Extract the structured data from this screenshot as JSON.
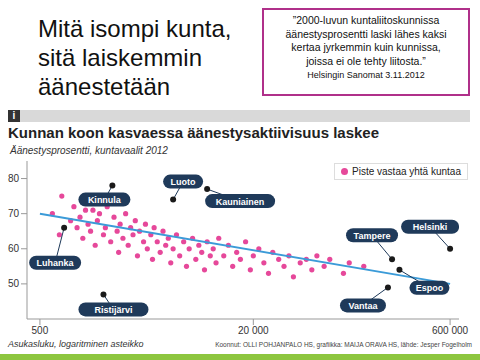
{
  "slide": {
    "title_lines": [
      "Mitä isompi kunta,",
      "sitä laiskemmin",
      "äänestetään"
    ],
    "quote": {
      "lines": [
        "”2000-luvun kuntaliitoskunnissa",
        "äänestysprosentti laski lähes kaksi",
        "kertaa jyrkemmin kuin kunnissa,",
        "joissa ei ole tehty liitosta.”"
      ],
      "source": "Helsingin Sanomat 3.11.2012"
    },
    "icon": "i",
    "credits": "Koonnut: OLLI POHJANPALO HS, grafiikka: MAIJA ORAVA HS, lähde: Jesper Fogelholm"
  },
  "chart_data": {
    "type": "scatter",
    "title": "Kunnan koon kasvaessa äänestysaktiivisuus laskee",
    "y_label": "Äänestysprosentti, kuntavaalit 2012",
    "x_label": "Asukasluku, logaritminen asteikko",
    "log": "x",
    "legend": "upper right",
    "xlim": [
      400,
      700000
    ],
    "xticks": [
      500,
      {
        "value": 20000,
        "label": "20 000"
      },
      {
        "value": 600000,
        "label": "600 000"
      }
    ],
    "ylim": [
      40,
      85
    ],
    "yticks": [
      50,
      60,
      70,
      80
    ],
    "series": [
      {
        "name": "Piste vastaa yhtä kuntaa",
        "type": "scatter",
        "color": "#e6489a",
        "x": [
          620,
          700,
          730,
          850,
          900,
          950,
          1000,
          1050,
          1100,
          1150,
          1200,
          1250,
          1300,
          1350,
          1400,
          1500,
          1550,
          1600,
          1700,
          1800,
          1900,
          1950,
          2000,
          2100,
          2200,
          2300,
          2400,
          2500,
          2600,
          2700,
          2800,
          3000,
          3100,
          3200,
          3400,
          3500,
          3600,
          3800,
          4000,
          4200,
          4400,
          4600,
          4800,
          5000,
          5300,
          5600,
          6000,
          6300,
          6600,
          7000,
          7400,
          7800,
          8200,
          8600,
          9000,
          9500,
          10000,
          10500,
          11000,
          12000,
          13000,
          14000,
          15000,
          16000,
          17500,
          19000,
          20000,
          22000,
          24000,
          26000,
          28000,
          31000,
          34000,
          37000,
          40000,
          45000,
          50000,
          55000,
          60000,
          68000,
          75000,
          95000,
          105000,
          135000
        ],
        "values": [
          70,
          64,
          75,
          68,
          72,
          66,
          69,
          63,
          71,
          67,
          65,
          71,
          61,
          68,
          70,
          64,
          66,
          72,
          62,
          69,
          65,
          59,
          67,
          63,
          70,
          61,
          66,
          64,
          68,
          58,
          65,
          62,
          67,
          60,
          64,
          57,
          66,
          62,
          59,
          65,
          61,
          63,
          56,
          60,
          64,
          58,
          62,
          55,
          60,
          63,
          57,
          61,
          59,
          54,
          62,
          58,
          60,
          56,
          63,
          58,
          61,
          55,
          59,
          57,
          62,
          54,
          58,
          60,
          56,
          53,
          59,
          57,
          55,
          58,
          52,
          56,
          57,
          54,
          58,
          55,
          57,
          53,
          56,
          55
        ]
      },
      {
        "type": "line",
        "color": "#3b9bd8",
        "x": [
          500,
          600000
        ],
        "values": [
          70,
          50
        ]
      },
      {
        "type": "scatter",
        "color": "#1a1a1a",
        "labels": [
          "Luhanka",
          "Kinnula",
          "Luoto",
          "Kauniainen",
          "Ristijärvi",
          "Tampere",
          "Helsinki",
          "Espoo",
          "Vantaa"
        ],
        "x": [
          760,
          1750,
          5000,
          9000,
          1500,
          220000,
          600000,
          250000,
          205000
        ],
        "values": [
          66,
          78,
          74,
          77,
          47,
          57,
          60,
          54,
          49
        ]
      }
    ]
  }
}
